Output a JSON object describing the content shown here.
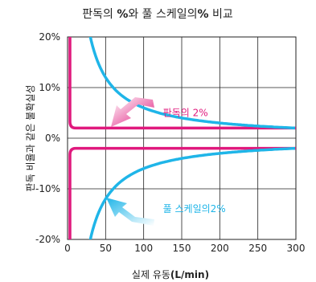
{
  "chart_data": {
    "type": "line",
    "title_prefix": "판독의 ",
    "title_bold_a": "%",
    "title_mid": "와 풀 스케일의",
    "title_bold_b": "%",
    "title_suffix": " 비교",
    "xlabel_prefix": "실제 유동",
    "xlabel_bold": "(L/min)",
    "ylabel": "판독 비율과 같은 불확실성",
    "xlim": [
      0,
      300
    ],
    "ylim": [
      -20,
      20
    ],
    "x_ticks": [
      0,
      50,
      100,
      150,
      200,
      250,
      300
    ],
    "x_tick_labels": [
      "0",
      "50",
      "100",
      "150",
      "200",
      "250",
      "300"
    ],
    "y_ticks": [
      20,
      10,
      0,
      -10,
      -20
    ],
    "y_tick_labels": [
      "20%",
      "10%",
      "0%",
      "-10%",
      "-20%"
    ],
    "grid": true,
    "series": [
      {
        "name": "판독의 2%",
        "color": "#e0197d",
        "band": "reading",
        "values": [
          2,
          -2
        ]
      },
      {
        "name": "풀 스케일의2%",
        "color": "#1fb5e8",
        "band": "full_scale",
        "full_scale": 300,
        "percent": 2
      }
    ],
    "annotations": [
      {
        "text": "판독의 2%",
        "color": "#e0197d",
        "x": 100,
        "y": 5
      },
      {
        "text": "풀 스케일의2%",
        "color": "#1fb5e8",
        "x": 100,
        "y": -14
      }
    ]
  }
}
